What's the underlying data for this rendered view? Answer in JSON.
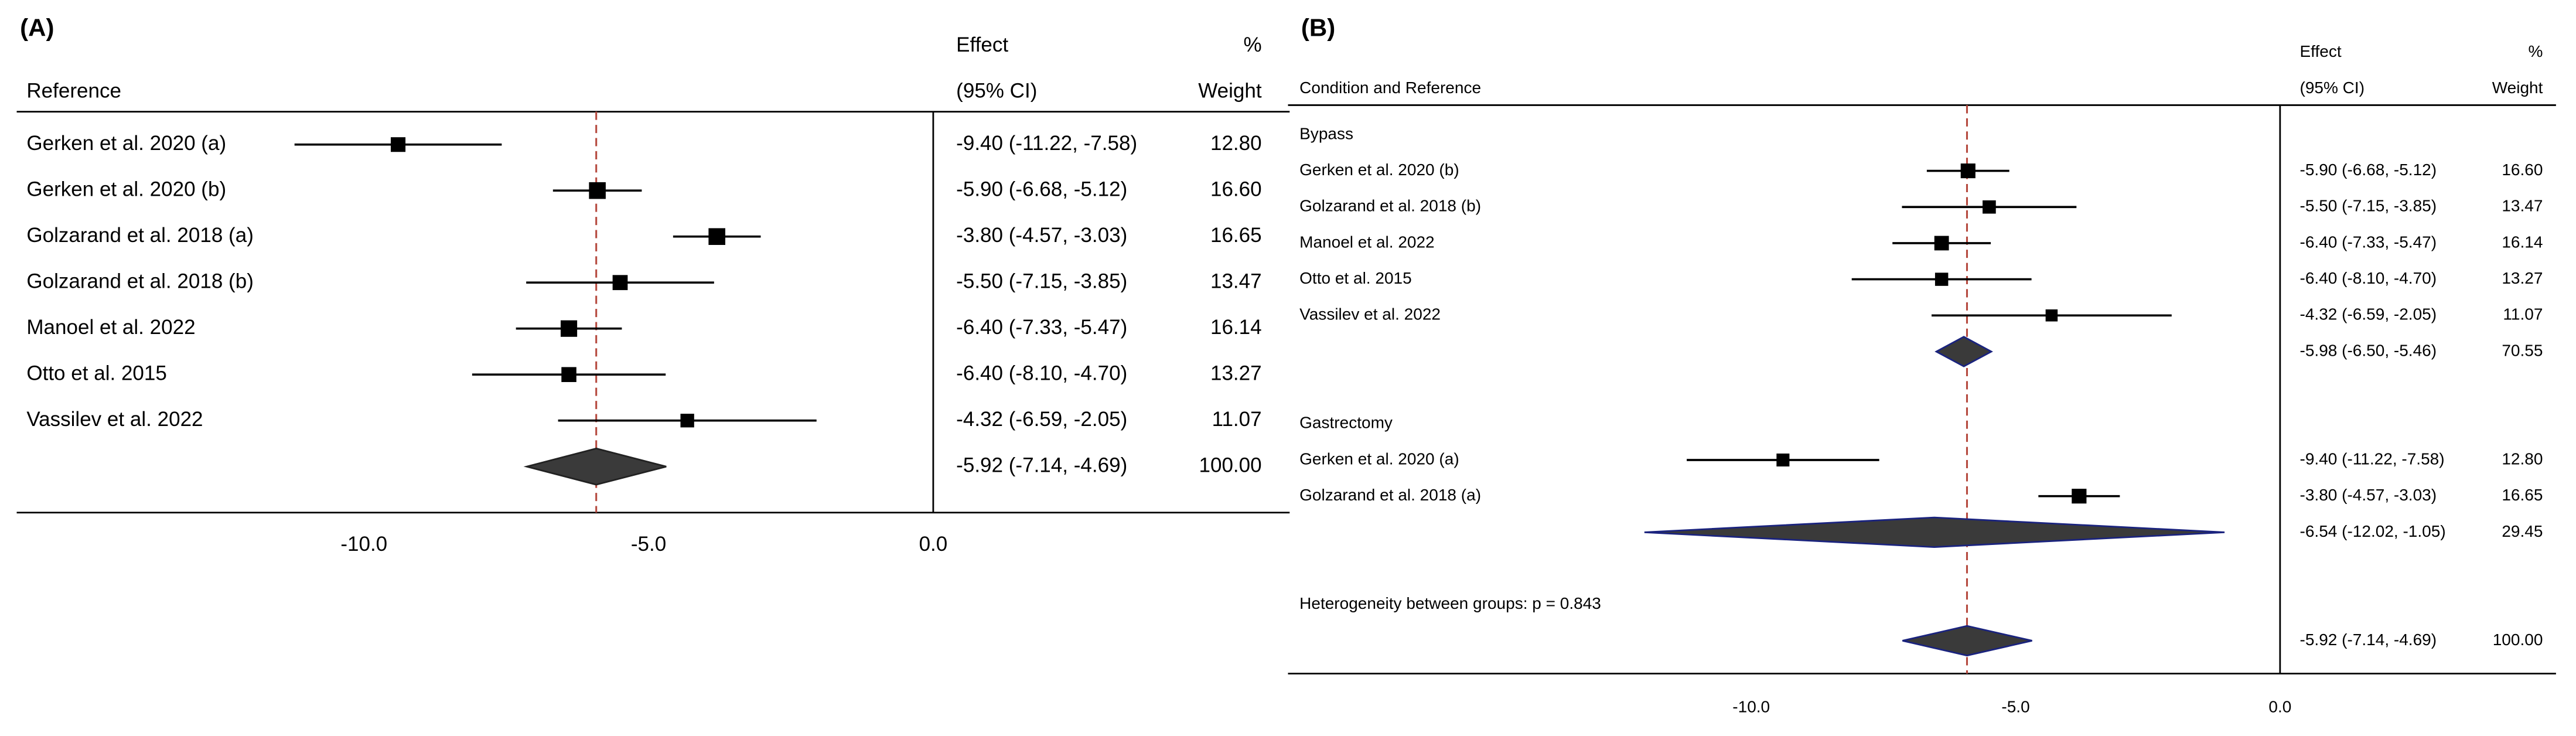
{
  "chart_data": [
    {
      "type": "forest",
      "panel_label": "(A)",
      "columns": {
        "reference": "Reference",
        "effect": "Effect",
        "ci": "(95% CI)",
        "percent": "%",
        "weight": "Weight"
      },
      "studies": [
        {
          "label": "Gerken et al. 2020 (a)",
          "effect": -9.4,
          "lower": -11.22,
          "upper": -7.58,
          "ci_label": "-9.40 (-11.22, -7.58)",
          "weight": 12.8,
          "weight_label": "12.80"
        },
        {
          "label": "Gerken et al. 2020 (b)",
          "effect": -5.9,
          "lower": -6.68,
          "upper": -5.12,
          "ci_label": "-5.90 (-6.68, -5.12)",
          "weight": 16.6,
          "weight_label": "16.60"
        },
        {
          "label": "Golzarand et al. 2018 (a)",
          "effect": -3.8,
          "lower": -4.57,
          "upper": -3.03,
          "ci_label": "-3.80 (-4.57, -3.03)",
          "weight": 16.65,
          "weight_label": "16.65"
        },
        {
          "label": "Golzarand et al. 2018 (b)",
          "effect": -5.5,
          "lower": -7.15,
          "upper": -3.85,
          "ci_label": "-5.50 (-7.15, -3.85)",
          "weight": 13.47,
          "weight_label": "13.47"
        },
        {
          "label": "Manoel et al. 2022",
          "effect": -6.4,
          "lower": -7.33,
          "upper": -5.47,
          "ci_label": "-6.40 (-7.33, -5.47)",
          "weight": 16.14,
          "weight_label": "16.14"
        },
        {
          "label": "Otto et al. 2015",
          "effect": -6.4,
          "lower": -8.1,
          "upper": -4.7,
          "ci_label": "-6.40 (-8.10, -4.70)",
          "weight": 13.27,
          "weight_label": "13.27"
        },
        {
          "label": "Vassilev et al. 2022",
          "effect": -4.32,
          "lower": -6.59,
          "upper": -2.05,
          "ci_label": "-4.32 (-6.59, -2.05)",
          "weight": 11.07,
          "weight_label": "11.07"
        }
      ],
      "overall": {
        "effect": -5.92,
        "lower": -7.14,
        "upper": -4.69,
        "ci_label": "-5.92 (-7.14, -4.69)",
        "weight": 100,
        "weight_label": "100.00"
      },
      "xlim": [
        -16.1,
        0
      ],
      "xticks": [
        {
          "value": -10,
          "label": "-10.0"
        },
        {
          "value": -5,
          "label": "-5.0"
        },
        {
          "value": 0,
          "label": "0.0"
        }
      ]
    },
    {
      "type": "forest",
      "panel_label": "(B)",
      "columns": {
        "reference": "Condition and Reference",
        "effect": "Effect",
        "ci": "(95% CI)",
        "percent": "%",
        "weight": "Weight"
      },
      "groups": [
        {
          "name": "Bypass",
          "studies": [
            {
              "label": "Gerken et al. 2020 (b)",
              "effect": -5.9,
              "lower": -6.68,
              "upper": -5.12,
              "ci_label": "-5.90 (-6.68, -5.12)",
              "weight": 16.6,
              "weight_label": "16.60"
            },
            {
              "label": "Golzarand et al. 2018 (b)",
              "effect": -5.5,
              "lower": -7.15,
              "upper": -3.85,
              "ci_label": "-5.50 (-7.15, -3.85)",
              "weight": 13.47,
              "weight_label": "13.47"
            },
            {
              "label": "Manoel et al. 2022",
              "effect": -6.4,
              "lower": -7.33,
              "upper": -5.47,
              "ci_label": "-6.40 (-7.33, -5.47)",
              "weight": 16.14,
              "weight_label": "16.14"
            },
            {
              "label": "Otto et al. 2015",
              "effect": -6.4,
              "lower": -8.1,
              "upper": -4.7,
              "ci_label": "-6.40 (-8.10, -4.70)",
              "weight": 13.27,
              "weight_label": "13.27"
            },
            {
              "label": "Vassilev et al. 2022",
              "effect": -4.32,
              "lower": -6.59,
              "upper": -2.05,
              "ci_label": "-4.32 (-6.59, -2.05)",
              "weight": 11.07,
              "weight_label": "11.07"
            }
          ],
          "subtotal": {
            "effect": -5.98,
            "lower": -6.5,
            "upper": -5.46,
            "ci_label": "-5.98 (-6.50, -5.46)",
            "weight": 70.55,
            "weight_label": "70.55"
          }
        },
        {
          "name": "Gastrectomy",
          "studies": [
            {
              "label": "Gerken et al. 2020 (a)",
              "effect": -9.4,
              "lower": -11.22,
              "upper": -7.58,
              "ci_label": "-9.40 (-11.22, -7.58)",
              "weight": 12.8,
              "weight_label": "12.80"
            },
            {
              "label": "Golzarand et al. 2018 (a)",
              "effect": -3.8,
              "lower": -4.57,
              "upper": -3.03,
              "ci_label": "-3.80 (-4.57, -3.03)",
              "weight": 16.65,
              "weight_label": "16.65"
            }
          ],
          "subtotal": {
            "effect": -6.54,
            "lower": -12.02,
            "upper": -1.05,
            "ci_label": "-6.54 (-12.02, -1.05)",
            "weight": 29.45,
            "weight_label": "29.45"
          }
        }
      ],
      "heterogeneity": "Heterogeneity between groups: p = 0.843",
      "overall": {
        "effect": -5.92,
        "lower": -7.14,
        "upper": -4.69,
        "ci_label": "-5.92 (-7.14, -4.69)",
        "weight": 100,
        "weight_label": "100.00"
      },
      "xlim": [
        -18.76,
        0
      ],
      "xticks": [
        {
          "value": -10,
          "label": "-10.0"
        },
        {
          "value": -5,
          "label": "-5.0"
        },
        {
          "value": 0,
          "label": "0.0"
        }
      ]
    }
  ]
}
